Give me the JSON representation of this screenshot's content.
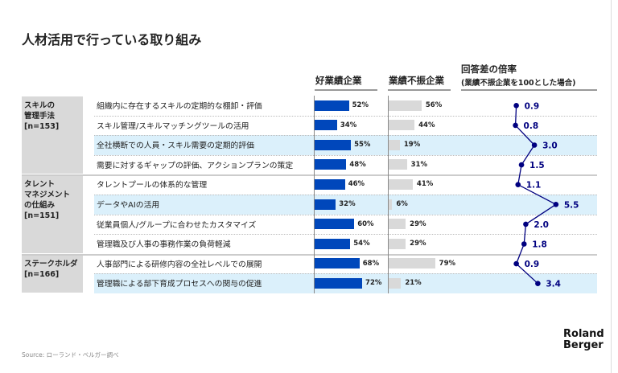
{
  "title": "人材活用で行っている取り組み",
  "headers": {
    "good": "好業績企業",
    "poor": "業績不振企業",
    "ratio_title": "回答差の倍率",
    "ratio_sub": "(業績不振企業を100とした場合)"
  },
  "colors": {
    "good": "#0047bb",
    "poor": "#d9d9d9",
    "ratio": "#000080",
    "highlight": "#dbf0fb"
  },
  "groups": [
    {
      "label": "スキルの\n管理手法\n[n=153]",
      "rows": 4
    },
    {
      "label": "タレント\nマネジメント\nの仕組み\n[n=151]",
      "rows": 4
    },
    {
      "label": "ステークホルダ\n[n=166]",
      "rows": 2
    }
  ],
  "chart_data": {
    "type": "bar",
    "categories": [
      "組織内に存在するスキルの定期的な棚卸・評価",
      "スキル管理/スキルマッチングツールの活用",
      "全社横断での人員・スキル需要の定期的評価",
      "需要に対するギャップの評価、アクションプランの策定",
      "タレントプールの体系的な管理",
      "データやAIの活用",
      "従業員個人/グループに合わせたカスタマイズ",
      "管理職及び人事の事務作業の負荷軽減",
      "人事部門による研修内容の全社レベルでの展開",
      "管理職による部下育成プロセスへの関与の促進"
    ],
    "highlighted": [
      false,
      false,
      true,
      false,
      false,
      true,
      false,
      false,
      false,
      true
    ],
    "series": [
      {
        "name": "好業績企業",
        "values": [
          52,
          34,
          55,
          48,
          46,
          32,
          60,
          54,
          68,
          72
        ],
        "labels": [
          "52%",
          "34%",
          "55%",
          "48%",
          "46%",
          "32%",
          "60%",
          "54%",
          "68%",
          "72%"
        ]
      },
      {
        "name": "業績不振企業",
        "values": [
          56,
          44,
          19,
          31,
          41,
          6,
          29,
          29,
          79,
          21
        ],
        "labels": [
          "56%",
          "44%",
          "19%",
          "31%",
          "41%",
          "6%",
          "29%",
          "29%",
          "79%",
          "21%"
        ]
      },
      {
        "name": "回答差の倍率",
        "type": "line",
        "values": [
          0.9,
          0.8,
          3.0,
          1.5,
          1.1,
          5.5,
          2.0,
          1.8,
          0.9,
          3.4
        ],
        "labels": [
          "0.9",
          "0.8",
          "3.0",
          "1.5",
          "1.1",
          "5.5",
          "2.0",
          "1.8",
          "0.9",
          "3.4"
        ]
      }
    ]
  },
  "source": "Source: ローランド・ベルガー調べ",
  "logo": "Roland\nBerger"
}
